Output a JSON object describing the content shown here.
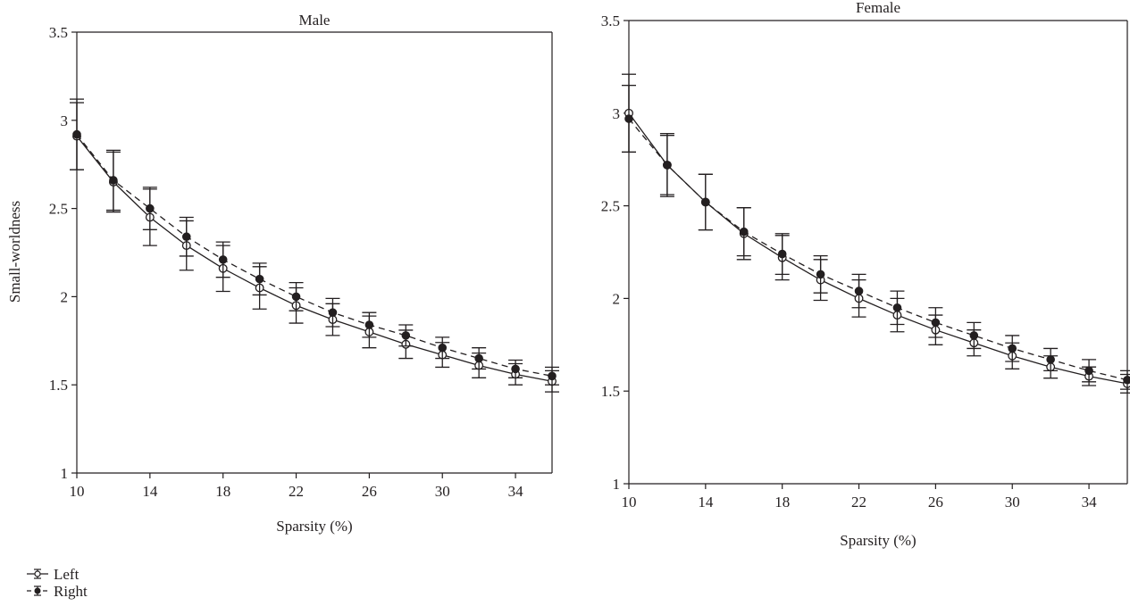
{
  "figure": {
    "ylabel_shared": "Small-worldness"
  },
  "legend": {
    "items": [
      {
        "label": "Left",
        "line": "solid",
        "marker": "open-circle"
      },
      {
        "label": "Right",
        "line": "dashed",
        "marker": "filled-circle"
      }
    ],
    "placement": "bottom-left"
  },
  "chart_data": [
    {
      "type": "line",
      "title": "Male",
      "xlabel": "Sparsity (%)",
      "ylabel": "Small-worldness",
      "xlim": [
        10,
        36
      ],
      "ylim": [
        1,
        3.5
      ],
      "xticks": [
        10,
        14,
        18,
        22,
        26,
        30,
        34
      ],
      "yticks": [
        1,
        1.5,
        2,
        2.5,
        3,
        3.5
      ],
      "ytick_labels": [
        "1",
        "1.5",
        "2",
        "2.5",
        "3",
        "3.5"
      ],
      "grid": false,
      "x": [
        10,
        12,
        14,
        16,
        18,
        20,
        22,
        24,
        26,
        28,
        30,
        32,
        34,
        36
      ],
      "series": [
        {
          "name": "Left",
          "line": "solid",
          "marker": "open-circle",
          "values": [
            2.91,
            2.65,
            2.45,
            2.29,
            2.16,
            2.05,
            1.95,
            1.87,
            1.8,
            1.73,
            1.67,
            1.61,
            1.56,
            1.52
          ],
          "errors": [
            0.19,
            0.17,
            0.16,
            0.14,
            0.13,
            0.12,
            0.1,
            0.09,
            0.09,
            0.08,
            0.07,
            0.07,
            0.06,
            0.06
          ]
        },
        {
          "name": "Right",
          "line": "dashed",
          "marker": "filled-circle",
          "values": [
            2.92,
            2.66,
            2.5,
            2.34,
            2.21,
            2.1,
            2.0,
            1.91,
            1.84,
            1.78,
            1.71,
            1.65,
            1.59,
            1.55
          ],
          "errors": [
            0.2,
            0.17,
            0.12,
            0.11,
            0.1,
            0.09,
            0.08,
            0.08,
            0.07,
            0.06,
            0.06,
            0.06,
            0.05,
            0.05
          ]
        }
      ]
    },
    {
      "type": "line",
      "title": "Female",
      "xlabel": "Sparsity (%)",
      "ylabel": "",
      "xlim": [
        10,
        36
      ],
      "ylim": [
        1,
        3.5
      ],
      "xticks": [
        10,
        14,
        18,
        22,
        26,
        30,
        34
      ],
      "yticks": [
        1,
        1.5,
        2,
        2.5,
        3,
        3.5
      ],
      "ytick_labels": [
        "1",
        "1.5",
        "2",
        "2.5",
        "3",
        "3.5"
      ],
      "grid": false,
      "x": [
        10,
        12,
        14,
        16,
        18,
        20,
        22,
        24,
        26,
        28,
        30,
        32,
        34,
        36
      ],
      "series": [
        {
          "name": "Left",
          "line": "solid",
          "marker": "open-circle",
          "values": [
            3.0,
            2.72,
            2.52,
            2.35,
            2.22,
            2.1,
            2.0,
            1.91,
            1.83,
            1.76,
            1.69,
            1.63,
            1.58,
            1.54
          ],
          "errors": [
            0.21,
            0.17,
            0.15,
            0.14,
            0.12,
            0.11,
            0.1,
            0.09,
            0.08,
            0.07,
            0.07,
            0.06,
            0.05,
            0.05
          ]
        },
        {
          "name": "Right",
          "line": "dashed",
          "marker": "filled-circle",
          "values": [
            2.97,
            2.72,
            2.52,
            2.36,
            2.24,
            2.13,
            2.04,
            1.95,
            1.87,
            1.8,
            1.73,
            1.67,
            1.61,
            1.56
          ],
          "errors": [
            0.18,
            0.16,
            0.15,
            0.13,
            0.11,
            0.1,
            0.09,
            0.09,
            0.08,
            0.07,
            0.07,
            0.06,
            0.06,
            0.05
          ]
        }
      ]
    }
  ]
}
